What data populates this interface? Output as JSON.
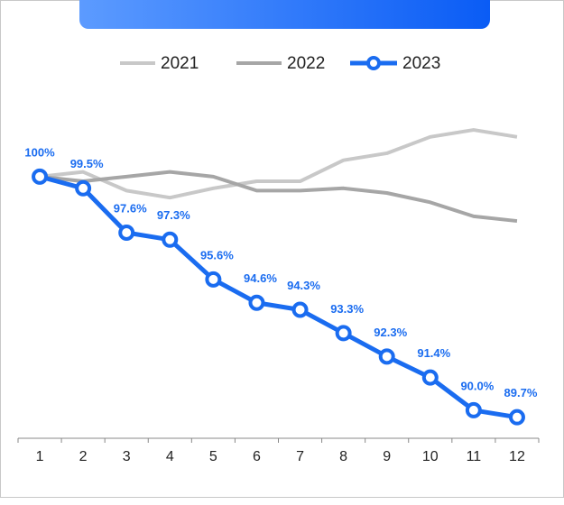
{
  "chart_data": {
    "type": "line",
    "categories": [
      "1",
      "2",
      "3",
      "4",
      "5",
      "6",
      "7",
      "8",
      "9",
      "10",
      "11",
      "12"
    ],
    "series": [
      {
        "name": "2021",
        "color": "#c8c8c8",
        "values": [
          100,
          100.2,
          99.4,
          99.1,
          99.5,
          99.8,
          99.8,
          100.7,
          101.0,
          101.7,
          102.0,
          101.7
        ]
      },
      {
        "name": "2022",
        "color": "#a6a6a6",
        "values": [
          100,
          99.8,
          100.0,
          100.2,
          100.0,
          99.4,
          99.4,
          99.5,
          99.3,
          98.9,
          98.3,
          98.1
        ]
      },
      {
        "name": "2023",
        "color": "#1a6cf0",
        "markers": true,
        "values": [
          100,
          99.5,
          97.6,
          97.3,
          95.6,
          94.6,
          94.3,
          93.3,
          92.3,
          91.4,
          90.0,
          89.7
        ],
        "value_labels": [
          "100%",
          "99.5%",
          "97.6%",
          "97.3%",
          "95.6%",
          "94.6%",
          "94.3%",
          "93.3%",
          "92.3%",
          "91.4%",
          "90.0%",
          "89.7%"
        ]
      }
    ],
    "ylim": [
      88.8,
      103.7
    ],
    "legend": "top"
  }
}
